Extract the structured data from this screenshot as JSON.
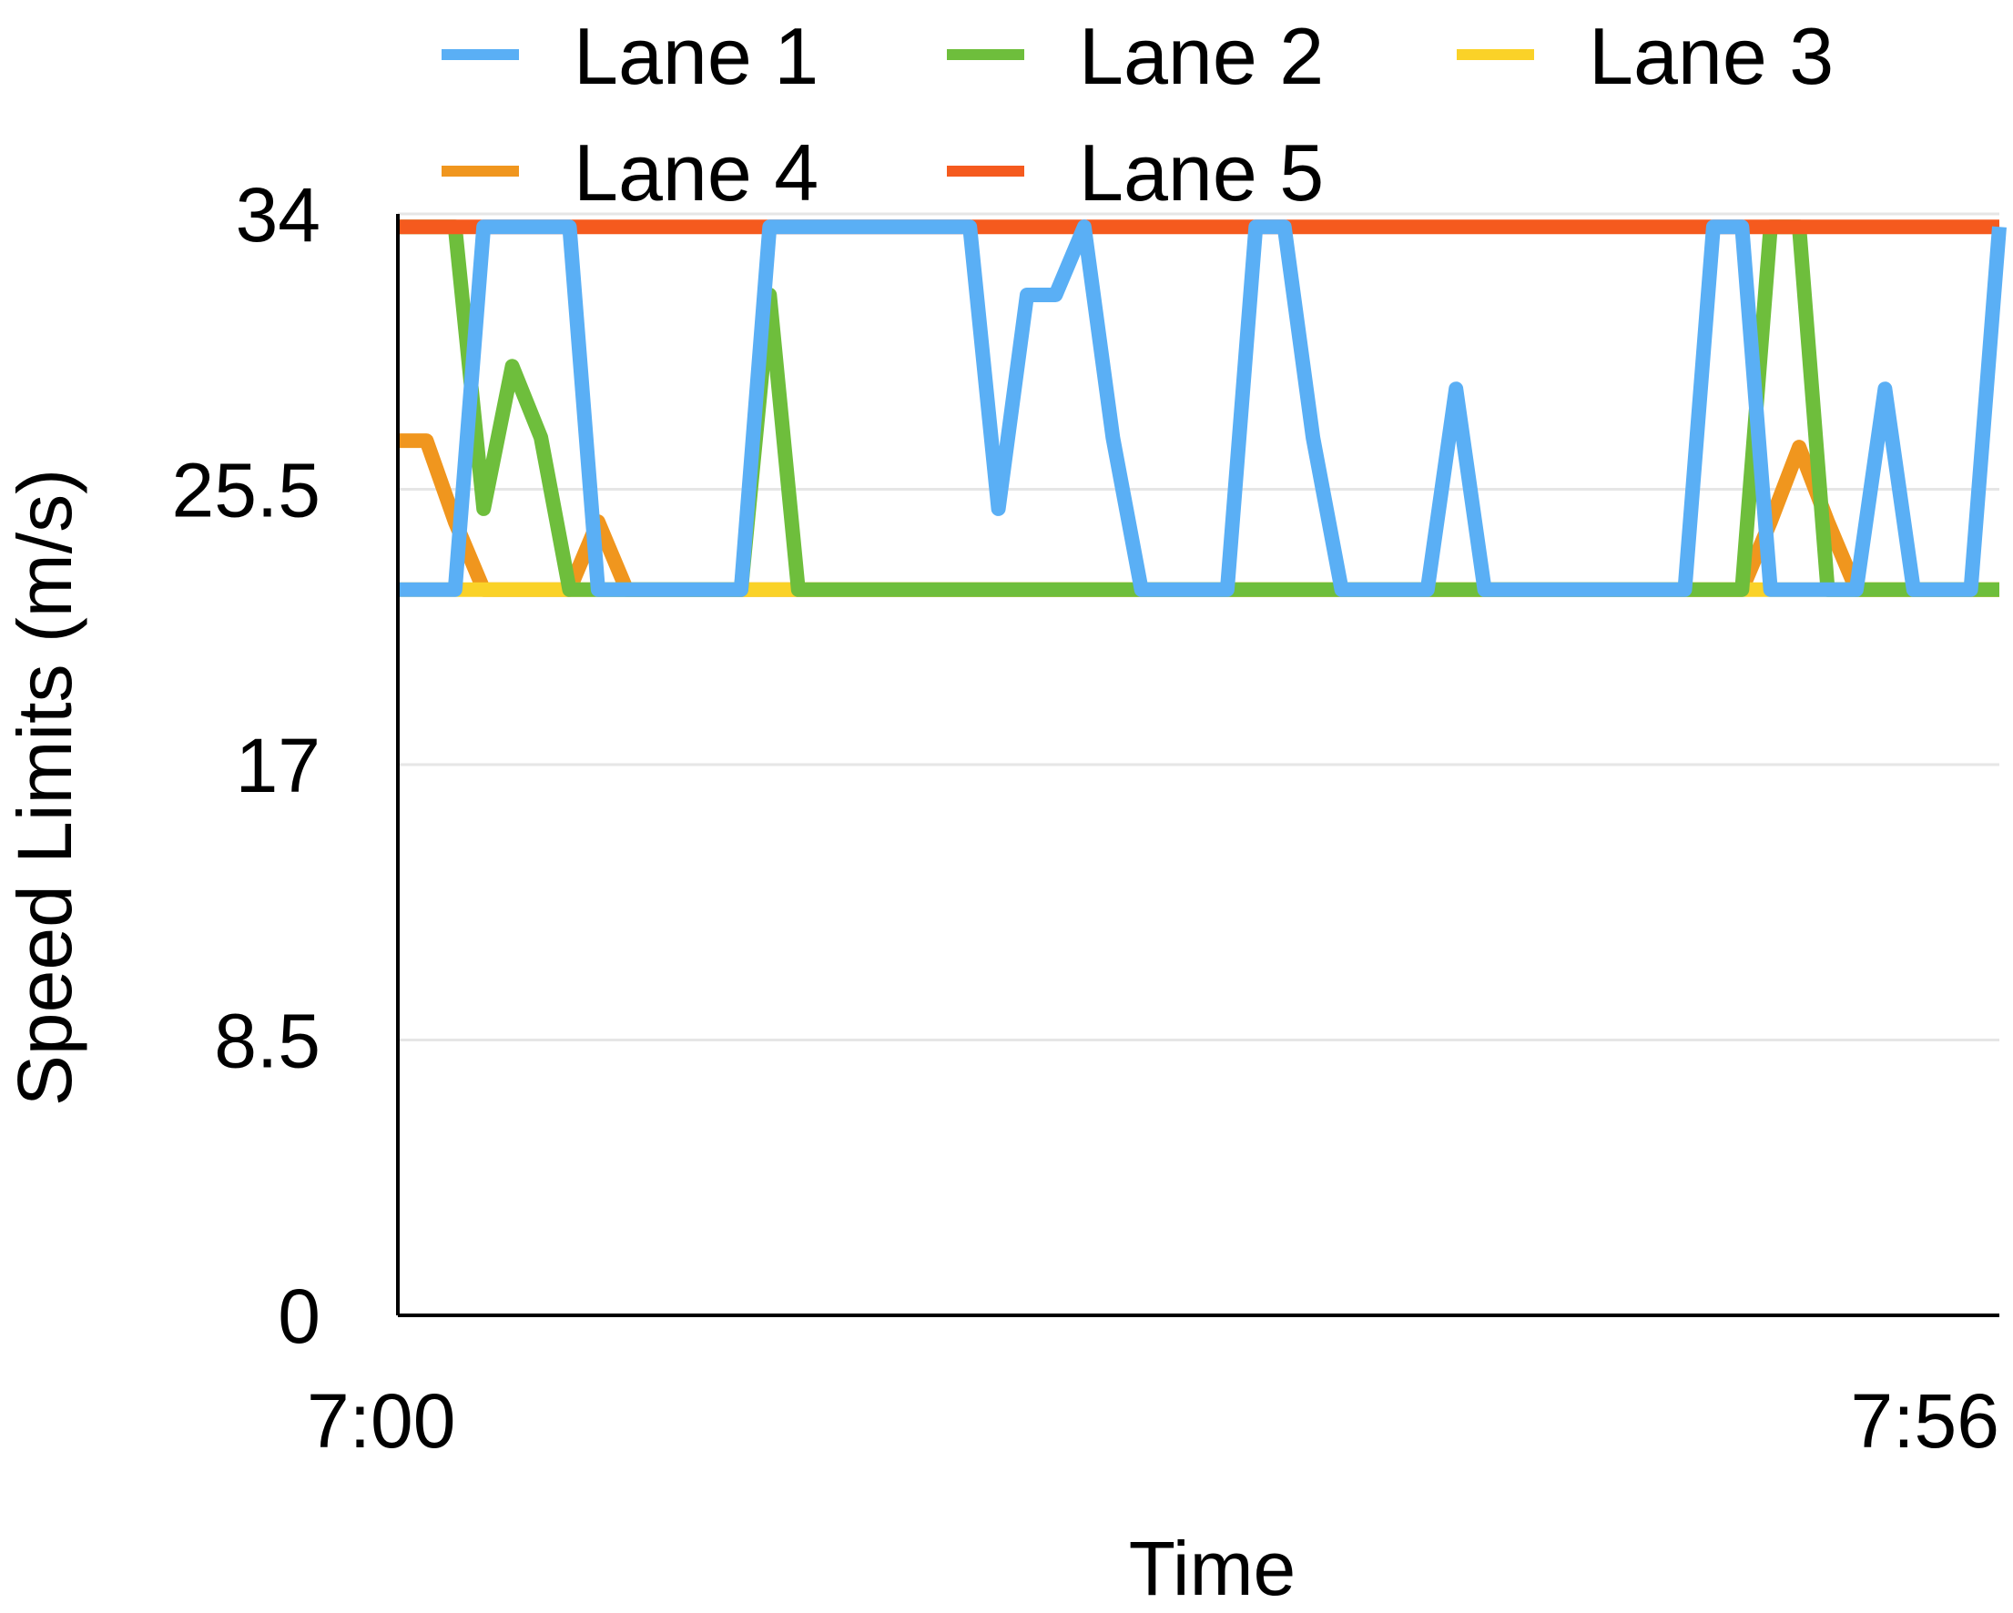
{
  "chart_data": {
    "type": "line",
    "xlabel": "Time",
    "ylabel": "Speed Limits (m/s)",
    "ylim": [
      0,
      34
    ],
    "xlim": [
      "7:00",
      "7:56"
    ],
    "x_ticks": [
      "7:00",
      "7:56"
    ],
    "y_ticks": [
      "0",
      "8.5",
      "17",
      "25.5",
      "34"
    ],
    "grid": true,
    "legend_position": "top",
    "x": [
      "7:00",
      "7:01",
      "7:02",
      "7:03",
      "7:04",
      "7:05",
      "7:06",
      "7:07",
      "7:08",
      "7:09",
      "7:10",
      "7:11",
      "7:12",
      "7:13",
      "7:14",
      "7:15",
      "7:16",
      "7:17",
      "7:18",
      "7:19",
      "7:20",
      "7:21",
      "7:22",
      "7:23",
      "7:24",
      "7:25",
      "7:26",
      "7:27",
      "7:28",
      "7:29",
      "7:30",
      "7:31",
      "7:32",
      "7:33",
      "7:34",
      "7:35",
      "7:36",
      "7:37",
      "7:38",
      "7:39",
      "7:40",
      "7:41",
      "7:42",
      "7:43",
      "7:44",
      "7:45",
      "7:46",
      "7:47",
      "7:48",
      "7:49",
      "7:50",
      "7:51",
      "7:52",
      "7:53",
      "7:54",
      "7:55",
      "7:56"
    ],
    "series": [
      {
        "name": "Lane 4",
        "color": "#f0961e",
        "values": [
          27,
          27,
          24.5,
          22.4,
          22.4,
          22.4,
          22.4,
          24.5,
          22.4,
          22.4,
          22.4,
          22.4,
          22.4,
          22.4,
          22.4,
          22.4,
          22.4,
          22.4,
          22.4,
          22.4,
          22.4,
          22.4,
          22.4,
          22.4,
          22.4,
          22.4,
          22.4,
          22.4,
          22.4,
          22.4,
          22.4,
          22.4,
          22.4,
          22.4,
          22.4,
          22.4,
          22.4,
          22.4,
          22.4,
          22.4,
          22.4,
          22.4,
          22.4,
          22.4,
          22.4,
          22.4,
          22.4,
          22.4,
          24.5,
          26.8,
          24.5,
          22.4,
          22.4,
          22.4,
          22.4,
          22.4,
          22.4
        ]
      },
      {
        "name": "Lane 3",
        "color": "#fad228",
        "values": [
          22.4,
          22.4,
          22.4,
          22.4,
          22.4,
          22.4,
          22.4,
          22.4,
          22.4,
          22.4,
          22.4,
          22.4,
          22.4,
          22.4,
          22.4,
          22.4,
          22.4,
          22.4,
          22.4,
          22.4,
          22.4,
          22.4,
          22.4,
          22.4,
          22.4,
          22.4,
          22.4,
          22.4,
          22.4,
          22.4,
          22.4,
          22.4,
          22.4,
          22.4,
          22.4,
          22.4,
          22.4,
          22.4,
          22.4,
          22.4,
          22.4,
          22.4,
          22.4,
          22.4,
          22.4,
          22.4,
          22.4,
          22.4,
          22.4,
          22.4,
          22.4,
          22.4,
          22.4,
          22.4,
          22.4,
          22.4,
          22.4
        ]
      },
      {
        "name": "Lane 2",
        "color": "#6ebe3c",
        "values": [
          33.6,
          33.6,
          33.6,
          24.9,
          29.3,
          27.1,
          22.4,
          22.4,
          22.4,
          22.4,
          22.4,
          22.4,
          22.4,
          31.5,
          22.4,
          22.4,
          22.4,
          22.4,
          22.4,
          22.4,
          22.4,
          22.4,
          22.4,
          22.4,
          22.4,
          22.4,
          22.4,
          22.4,
          22.4,
          22.4,
          22.4,
          22.4,
          22.4,
          22.4,
          22.4,
          22.4,
          22.4,
          22.4,
          22.4,
          22.4,
          22.4,
          22.4,
          22.4,
          22.4,
          22.4,
          22.4,
          22.4,
          22.4,
          33.6,
          33.6,
          22.4,
          22.4,
          22.4,
          22.4,
          22.4,
          22.4,
          22.4
        ]
      },
      {
        "name": "Lane 5",
        "color": "#f55a1e",
        "values": [
          33.6,
          33.6,
          33.6,
          33.6,
          33.6,
          33.6,
          33.6,
          33.6,
          33.6,
          33.6,
          33.6,
          33.6,
          33.6,
          33.6,
          33.6,
          33.6,
          33.6,
          33.6,
          33.6,
          33.6,
          33.6,
          33.6,
          33.6,
          33.6,
          33.6,
          33.6,
          33.6,
          33.6,
          33.6,
          33.6,
          33.6,
          33.6,
          33.6,
          33.6,
          33.6,
          33.6,
          33.6,
          33.6,
          33.6,
          33.6,
          33.6,
          33.6,
          33.6,
          33.6,
          33.6,
          33.6,
          33.6,
          33.6,
          33.6,
          33.6,
          33.6,
          33.6,
          33.6,
          33.6,
          33.6,
          33.6,
          33.6
        ]
      },
      {
        "name": "Lane 1",
        "color": "#5aaff5",
        "values": [
          22.4,
          22.4,
          22.4,
          33.6,
          33.6,
          33.6,
          33.6,
          22.4,
          22.4,
          22.4,
          22.4,
          22.4,
          22.4,
          33.6,
          33.6,
          33.6,
          33.6,
          33.6,
          33.6,
          33.6,
          33.6,
          24.9,
          31.5,
          31.5,
          33.6,
          27.1,
          22.4,
          22.4,
          22.4,
          22.4,
          33.6,
          33.6,
          27.1,
          22.4,
          22.4,
          22.4,
          22.4,
          28.6,
          22.4,
          22.4,
          22.4,
          22.4,
          22.4,
          22.4,
          22.4,
          22.4,
          33.6,
          33.6,
          22.4,
          22.4,
          22.4,
          22.4,
          28.6,
          22.4,
          22.4,
          22.4,
          33.6
        ]
      }
    ],
    "legend": [
      "Lane 1",
      "Lane 2",
      "Lane 3",
      "Lane 4",
      "Lane 5"
    ]
  }
}
